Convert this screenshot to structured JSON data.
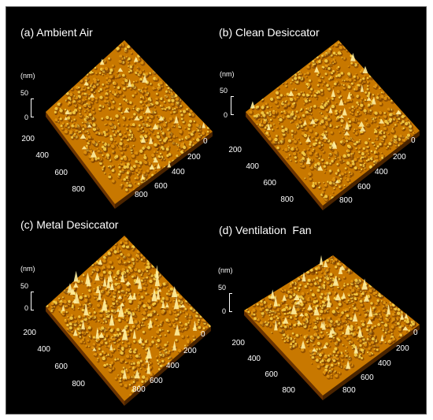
{
  "colors": {
    "background": "#000000",
    "text": "#ffffff",
    "surface_dark": "#6b3300",
    "surface_mid": "#c87800",
    "surface_light": "#ffd84a"
  },
  "panels": [
    {
      "title": "(a) Ambient Air",
      "z_unit": "(nm)",
      "z_ticks": [
        "50",
        "0"
      ],
      "left_ticks": [
        "200",
        "400",
        "600",
        "800"
      ],
      "right_ticks": [
        "0",
        "200",
        "400",
        "600",
        "800"
      ],
      "roughness": 0.45
    },
    {
      "title": "(b) Clean Desiccator",
      "z_unit": "(nm)",
      "z_ticks": [
        "50",
        "0"
      ],
      "left_ticks": [
        "200",
        "400",
        "600",
        "800"
      ],
      "right_ticks": [
        "0",
        "200",
        "400",
        "600",
        "800"
      ],
      "roughness": 0.5
    },
    {
      "title": "(c) Metal Desiccator",
      "z_unit": "(nm)",
      "z_ticks": [
        "50",
        "0"
      ],
      "left_ticks": [
        "200",
        "400",
        "600",
        "800"
      ],
      "right_ticks": [
        "0",
        "200",
        "400",
        "600",
        "800"
      ],
      "roughness": 1.0
    },
    {
      "title": "(d) Ventilation  Fan",
      "z_unit": "(nm)",
      "z_ticks": [
        "50",
        "0"
      ],
      "left_ticks": [
        "200",
        "400",
        "600",
        "800"
      ],
      "right_ticks": [
        "0",
        "200",
        "400",
        "600",
        "800"
      ],
      "roughness": 0.75
    }
  ]
}
